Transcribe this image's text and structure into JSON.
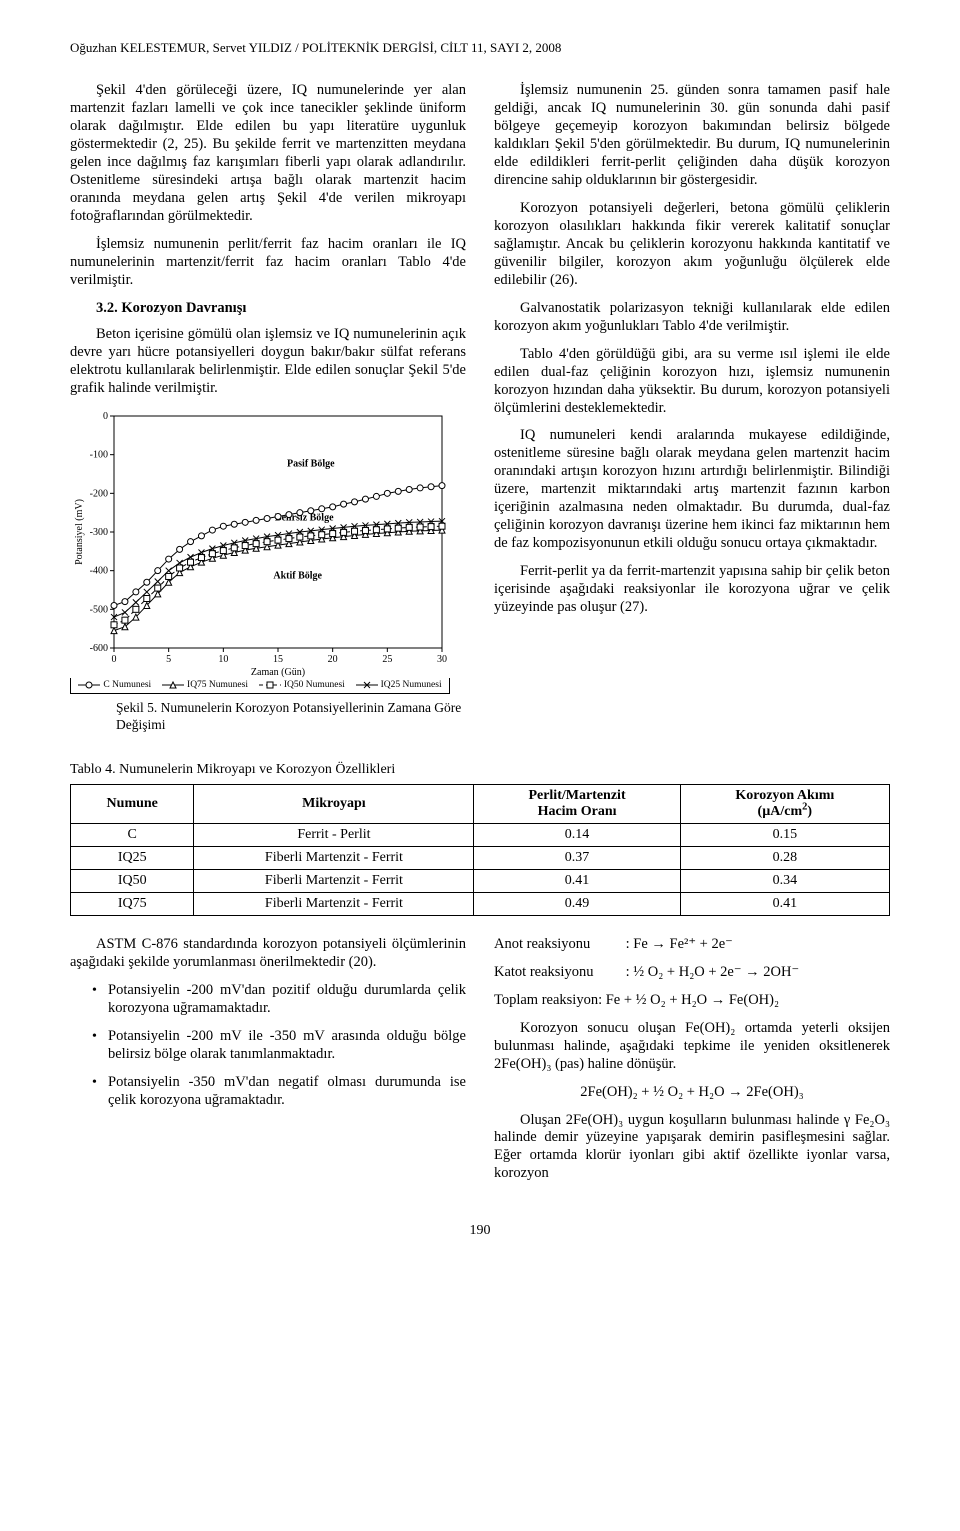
{
  "running_head": "Oğuzhan KELESTEMUR, Servet YILDIZ  /  POLİTEKNİK DERGİSİ, CİLT 11,  SAYI 2,  2008",
  "left": {
    "p1": "Şekil 4'den görüleceği üzere, IQ numunelerinde yer alan martenzit fazları lamelli ve çok ince tanecikler şeklinde üniform olarak dağılmıştır. Elde edilen bu yapı literatüre uygunluk göstermektedir (2, 25). Bu şekilde ferrit ve martenzitten meydana gelen ince dağılmış faz karışımları fiberli yapı olarak adlandırılır. Ostenitleme süresindeki artışa bağlı olarak martenzit hacim oranında meydana gelen artış Şekil 4'de verilen mikroyapı fotoğraflarından görülmektedir.",
    "p2": "İşlemsiz numunenin perlit/ferrit faz hacim oranları ile IQ numunelerinin martenzit/ferrit faz hacim oranları Tablo 4'de verilmiştir.",
    "h": "3.2. Korozyon Davranışı",
    "p3": "Beton içerisine gömülü olan işlemsiz ve IQ numunelerinin açık devre yarı hücre potansiyelleri doygun bakır/bakır sülfat referans elektrotu kullanılarak belirlenmiştir. Elde edilen sonuçlar Şekil 5'de grafik halinde verilmiştir.",
    "fig5": "Şekil 5. Numunelerin Korozyon Potansiyellerinin Zamana Göre Değişimi"
  },
  "right": {
    "p1": "İşlemsiz numunenin 25. günden sonra tamamen pasif hale geldiği, ancak IQ numunelerinin 30. gün sonunda dahi pasif bölgeye geçemeyip korozyon bakımından belirsiz bölgede kaldıkları Şekil 5'den görülmektedir. Bu durum, IQ numunelerinin elde edildikleri ferrit-perlit çeliğinden daha düşük korozyon direncine sahip olduklarının bir göstergesidir.",
    "p2": "Korozyon potansiyeli değerleri, betona gömülü çeliklerin korozyon olasılıkları hakkında fikir vererek kalitatif sonuçlar sağlamıştır. Ancak bu çeliklerin korozyonu hakkında kantitatif ve güvenilir bilgiler, korozyon akım yoğunluğu ölçülerek elde edilebilir (26).",
    "p3": "Galvanostatik polarizasyon tekniği kullanılarak elde edilen korozyon akım yoğunlukları Tablo 4'de verilmiştir.",
    "p4": "Tablo 4'den görüldüğü gibi, ara su verme ısıl işlemi ile elde edilen dual-faz çeliğinin korozyon hızı, işlemsiz numunenin korozyon hızından daha yüksektir. Bu durum, korozyon potansiyeli ölçümlerini desteklemektedir.",
    "p5": "IQ numuneleri kendi aralarında mukayese edildiğinde, ostenitleme süresine bağlı olarak meydana gelen martenzit hacim oranındaki artışın korozyon hızını artırdığı belirlenmiştir. Bilindiği üzere, martenzit miktarındaki artış martenzit fazının karbon içeriğinin azalmasına neden olmaktadır. Bu durumda, dual-faz çeliğinin korozyon davranışı üzerine hem ikinci faz miktarının hem de faz kompozisyonunun etkili olduğu sonucu ortaya çıkmaktadır.",
    "p6": "Ferrit-perlit ya da ferrit-martenzit yapısına sahip bir çelik beton içerisinde aşağıdaki reaksiyonlar ile korozyona uğrar ve çelik yüzeyinde pas oluşur (27)."
  },
  "chart": {
    "type": "line",
    "x": [
      0,
      1,
      2,
      3,
      4,
      5,
      6,
      7,
      8,
      9,
      10,
      11,
      12,
      13,
      14,
      15,
      16,
      17,
      18,
      19,
      20,
      21,
      22,
      23,
      24,
      25,
      26,
      27,
      28,
      29,
      30
    ],
    "ylabel": "Potansiyel (mV)",
    "xlabel": "Zaman (Gün)",
    "ylim": [
      -600,
      0
    ],
    "ytick_step": 100,
    "xlim": [
      0,
      30
    ],
    "xtick_step": 5,
    "background_color": "#ffffff",
    "axis_color": "#000000",
    "label_fontsize": 10,
    "line_width": 1,
    "regions": {
      "pasif": {
        "label": "Pasif Bölge",
        "y": -130
      },
      "belirsiz": {
        "label": "Belirsiz Bölge",
        "y": -270
      },
      "aktif": {
        "label": "Aktif Bölge",
        "y": -420
      }
    },
    "series": {
      "C": {
        "name": "C Numunesi",
        "marker": "circle",
        "color": "#000000",
        "y": [
          -490,
          -480,
          -455,
          -430,
          -400,
          -370,
          -345,
          -325,
          -310,
          -295,
          -285,
          -280,
          -275,
          -270,
          -265,
          -260,
          -255,
          -250,
          -245,
          -240,
          -235,
          -228,
          -222,
          -215,
          -208,
          -200,
          -195,
          -190,
          -186,
          -183,
          -180
        ]
      },
      "IQ75": {
        "name": "IQ75 Numunesi",
        "marker": "triangle",
        "color": "#000000",
        "y": [
          -555,
          -545,
          -520,
          -490,
          -460,
          -430,
          -405,
          -390,
          -378,
          -368,
          -360,
          -353,
          -347,
          -342,
          -338,
          -334,
          -330,
          -326,
          -322,
          -318,
          -315,
          -312,
          -309,
          -306,
          -304,
          -302,
          -300,
          -298,
          -297,
          -296,
          -295
        ]
      },
      "IQ50": {
        "name": "IQ50 Numunesi",
        "marker": "square",
        "color": "#000000",
        "dash": "4 3",
        "y": [
          -540,
          -528,
          -500,
          -472,
          -445,
          -415,
          -393,
          -378,
          -366,
          -356,
          -348,
          -341,
          -335,
          -330,
          -325,
          -321,
          -317,
          -313,
          -310,
          -307,
          -304,
          -301,
          -298,
          -296,
          -294,
          -292,
          -290,
          -288,
          -287,
          -286,
          -285
        ]
      },
      "IQ25": {
        "name": "IQ25 Numunesi",
        "marker": "x",
        "color": "#000000",
        "y": [
          -520,
          -508,
          -482,
          -455,
          -428,
          -400,
          -380,
          -365,
          -353,
          -343,
          -335,
          -328,
          -322,
          -317,
          -312,
          -308,
          -304,
          -300,
          -297,
          -294,
          -291,
          -288,
          -285,
          -283,
          -281,
          -279,
          -277,
          -275,
          -274,
          -273,
          -272
        ]
      }
    }
  },
  "table4": {
    "caption": "Tablo 4. Numunelerin Mikroyapı ve Korozyon Özellikleri",
    "columns": [
      "Numune",
      "Mikroyapı",
      "Perlit/Martenzit Hacim Oranı",
      "Korozyon Akımı (µA/cm²)"
    ],
    "rows": [
      [
        "C",
        "Ferrit - Perlit",
        "0.14",
        "0.15"
      ],
      [
        "IQ25",
        "Fiberli Martenzit - Ferrit",
        "0.37",
        "0.28"
      ],
      [
        "IQ50",
        "Fiberli Martenzit - Ferrit",
        "0.41",
        "0.34"
      ],
      [
        "IQ75",
        "Fiberli Martenzit - Ferrit",
        "0.49",
        "0.41"
      ]
    ]
  },
  "bottom_left": {
    "p1": "ASTM C-876 standardında korozyon potansiyeli ölçümlerinin aşağıdaki şekilde yorumlanması önerilmektedir (20).",
    "b1": "Potansiyelin -200 mV'dan pozitif olduğu durumlarda çelik korozyona uğramamaktadır.",
    "b2": "Potansiyelin -200 mV ile -350 mV arasında olduğu bölge belirsiz bölge olarak tanımlanmaktadır.",
    "b3": "Potansiyelin -350 mV'dan negatif olması durumunda ise çelik korozyona uğramaktadır."
  },
  "bottom_right": {
    "l1a": "Anot reaksiyonu",
    "l1b": ": Fe → Fe²⁺ + 2e⁻",
    "l2a": "Katot reaksiyonu",
    "l2b": ": ½ O₂ + H₂O + 2e⁻ → 2OH⁻",
    "l3": "Toplam reaksiyon: Fe + ½ O₂ + H₂O → Fe(OH)₂",
    "p1": "Korozyon sonucu oluşan Fe(OH)₂ ortamda yeterli oksijen bulunması halinde, aşağıdaki tepkime ile yeniden oksitlenerek 2Fe(OH)₃ (pas) haline dönüşür.",
    "eq": "2Fe(OH)₂ + ½ O₂ + H₂O → 2Fe(OH)₃",
    "p2": "Oluşan 2Fe(OH)₃ uygun koşulların bulunması halinde γ Fe₂O₃ halinde demir yüzeyine yapışarak demirin pasifleşmesini sağlar. Eğer ortamda klorür iyonları gibi aktif özellikte iyonlar varsa, korozyon"
  },
  "pagenum": "190"
}
